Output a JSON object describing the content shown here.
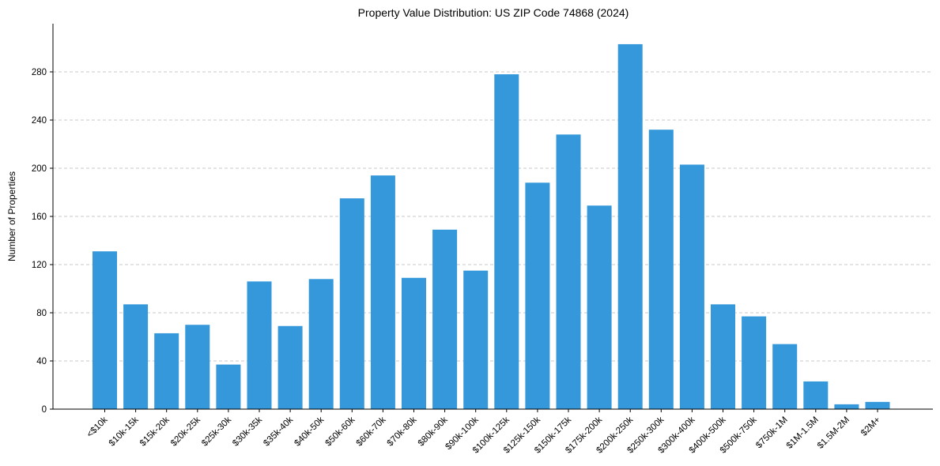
{
  "chart_data": {
    "type": "bar",
    "title": "Property Value Distribution: US ZIP Code 74868 (2024)",
    "xlabel": "",
    "ylabel": "Number of Properties",
    "ylim": [
      0,
      320
    ],
    "yticks": [
      0,
      40,
      80,
      120,
      160,
      200,
      240,
      280
    ],
    "grid": "y-dashed",
    "bar_color": "#3498db",
    "categories": [
      "<$10k",
      "$10k-15k",
      "$15k-20k",
      "$20k-25k",
      "$25k-30k",
      "$30k-35k",
      "$35k-40k",
      "$40k-50k",
      "$50k-60k",
      "$60k-70k",
      "$70k-80k",
      "$80k-90k",
      "$90k-100k",
      "$100k-125k",
      "$125k-150k",
      "$150k-175k",
      "$175k-200k",
      "$200k-250k",
      "$250k-300k",
      "$300k-400k",
      "$400k-500k",
      "$500k-750k",
      "$750k-1M",
      "$1M-1.5M",
      "$1.5M-2M",
      "$2M+"
    ],
    "values": [
      131,
      87,
      63,
      70,
      37,
      106,
      69,
      108,
      175,
      194,
      109,
      149,
      115,
      278,
      188,
      228,
      169,
      303,
      232,
      203,
      87,
      77,
      54,
      23,
      4,
      6
    ]
  }
}
